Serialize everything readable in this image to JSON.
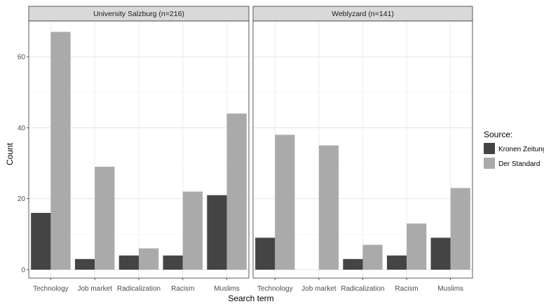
{
  "chart_data": {
    "type": "bar",
    "xlabel": "Search term",
    "ylabel": "Count",
    "ylim": [
      0,
      70
    ],
    "yticks": [
      0,
      20,
      40,
      60
    ],
    "grid": true,
    "legend": {
      "title": "Source:",
      "placement": "right",
      "entries": [
        {
          "name": "Kronen Zeitung",
          "color": "#444444"
        },
        {
          "name": "Der Standard",
          "color": "#aaaaaa"
        }
      ]
    },
    "categories": [
      "Technology",
      "Job market",
      "Radicalization",
      "Racism",
      "Muslims"
    ],
    "panels": [
      {
        "title": "University Salzburg (n=216)",
        "series": [
          {
            "name": "Kronen Zeitung",
            "values": [
              16,
              3,
              4,
              4,
              21
            ]
          },
          {
            "name": "Der Standard",
            "values": [
              67,
              29,
              6,
              22,
              44
            ]
          }
        ]
      },
      {
        "title": "Weblyzard (n=141)",
        "series": [
          {
            "name": "Kronen Zeitung",
            "values": [
              9,
              0,
              3,
              4,
              9
            ]
          },
          {
            "name": "Der Standard",
            "values": [
              38,
              35,
              7,
              13,
              23
            ]
          }
        ]
      }
    ]
  }
}
